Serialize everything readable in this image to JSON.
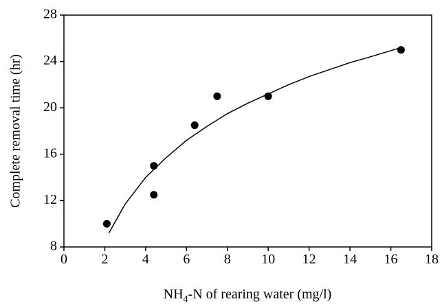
{
  "chart_data": {
    "type": "scatter",
    "x_label": {
      "main": "NH",
      "sub": "4",
      "rest": "-N of rearing water (mg/l)"
    },
    "y_label": "Complete removal time (hr)",
    "xlim": [
      0,
      18
    ],
    "xticks": [
      0,
      2,
      4,
      6,
      8,
      10,
      12,
      14,
      16,
      18
    ],
    "ylim": [
      8,
      28
    ],
    "yticks": [
      8,
      12,
      16,
      20,
      24,
      28
    ],
    "series": [
      {
        "kind": "points",
        "color": "#000000",
        "x": [
          2.1,
          4.4,
          4.4,
          6.4,
          7.5,
          10,
          16.5
        ],
        "values": [
          10,
          15,
          12.5,
          18.5,
          21,
          21,
          25
        ]
      },
      {
        "kind": "curve",
        "color": "#000000",
        "x": [
          2.2,
          3,
          4,
          5,
          6,
          7,
          8,
          9,
          10,
          11,
          12,
          13,
          14,
          15,
          16.5
        ],
        "values": [
          9.2,
          11.7,
          14,
          15.7,
          17.2,
          18.4,
          19.5,
          20.4,
          21.2,
          22,
          22.7,
          23.3,
          23.9,
          24.4,
          25.2
        ]
      }
    ]
  }
}
